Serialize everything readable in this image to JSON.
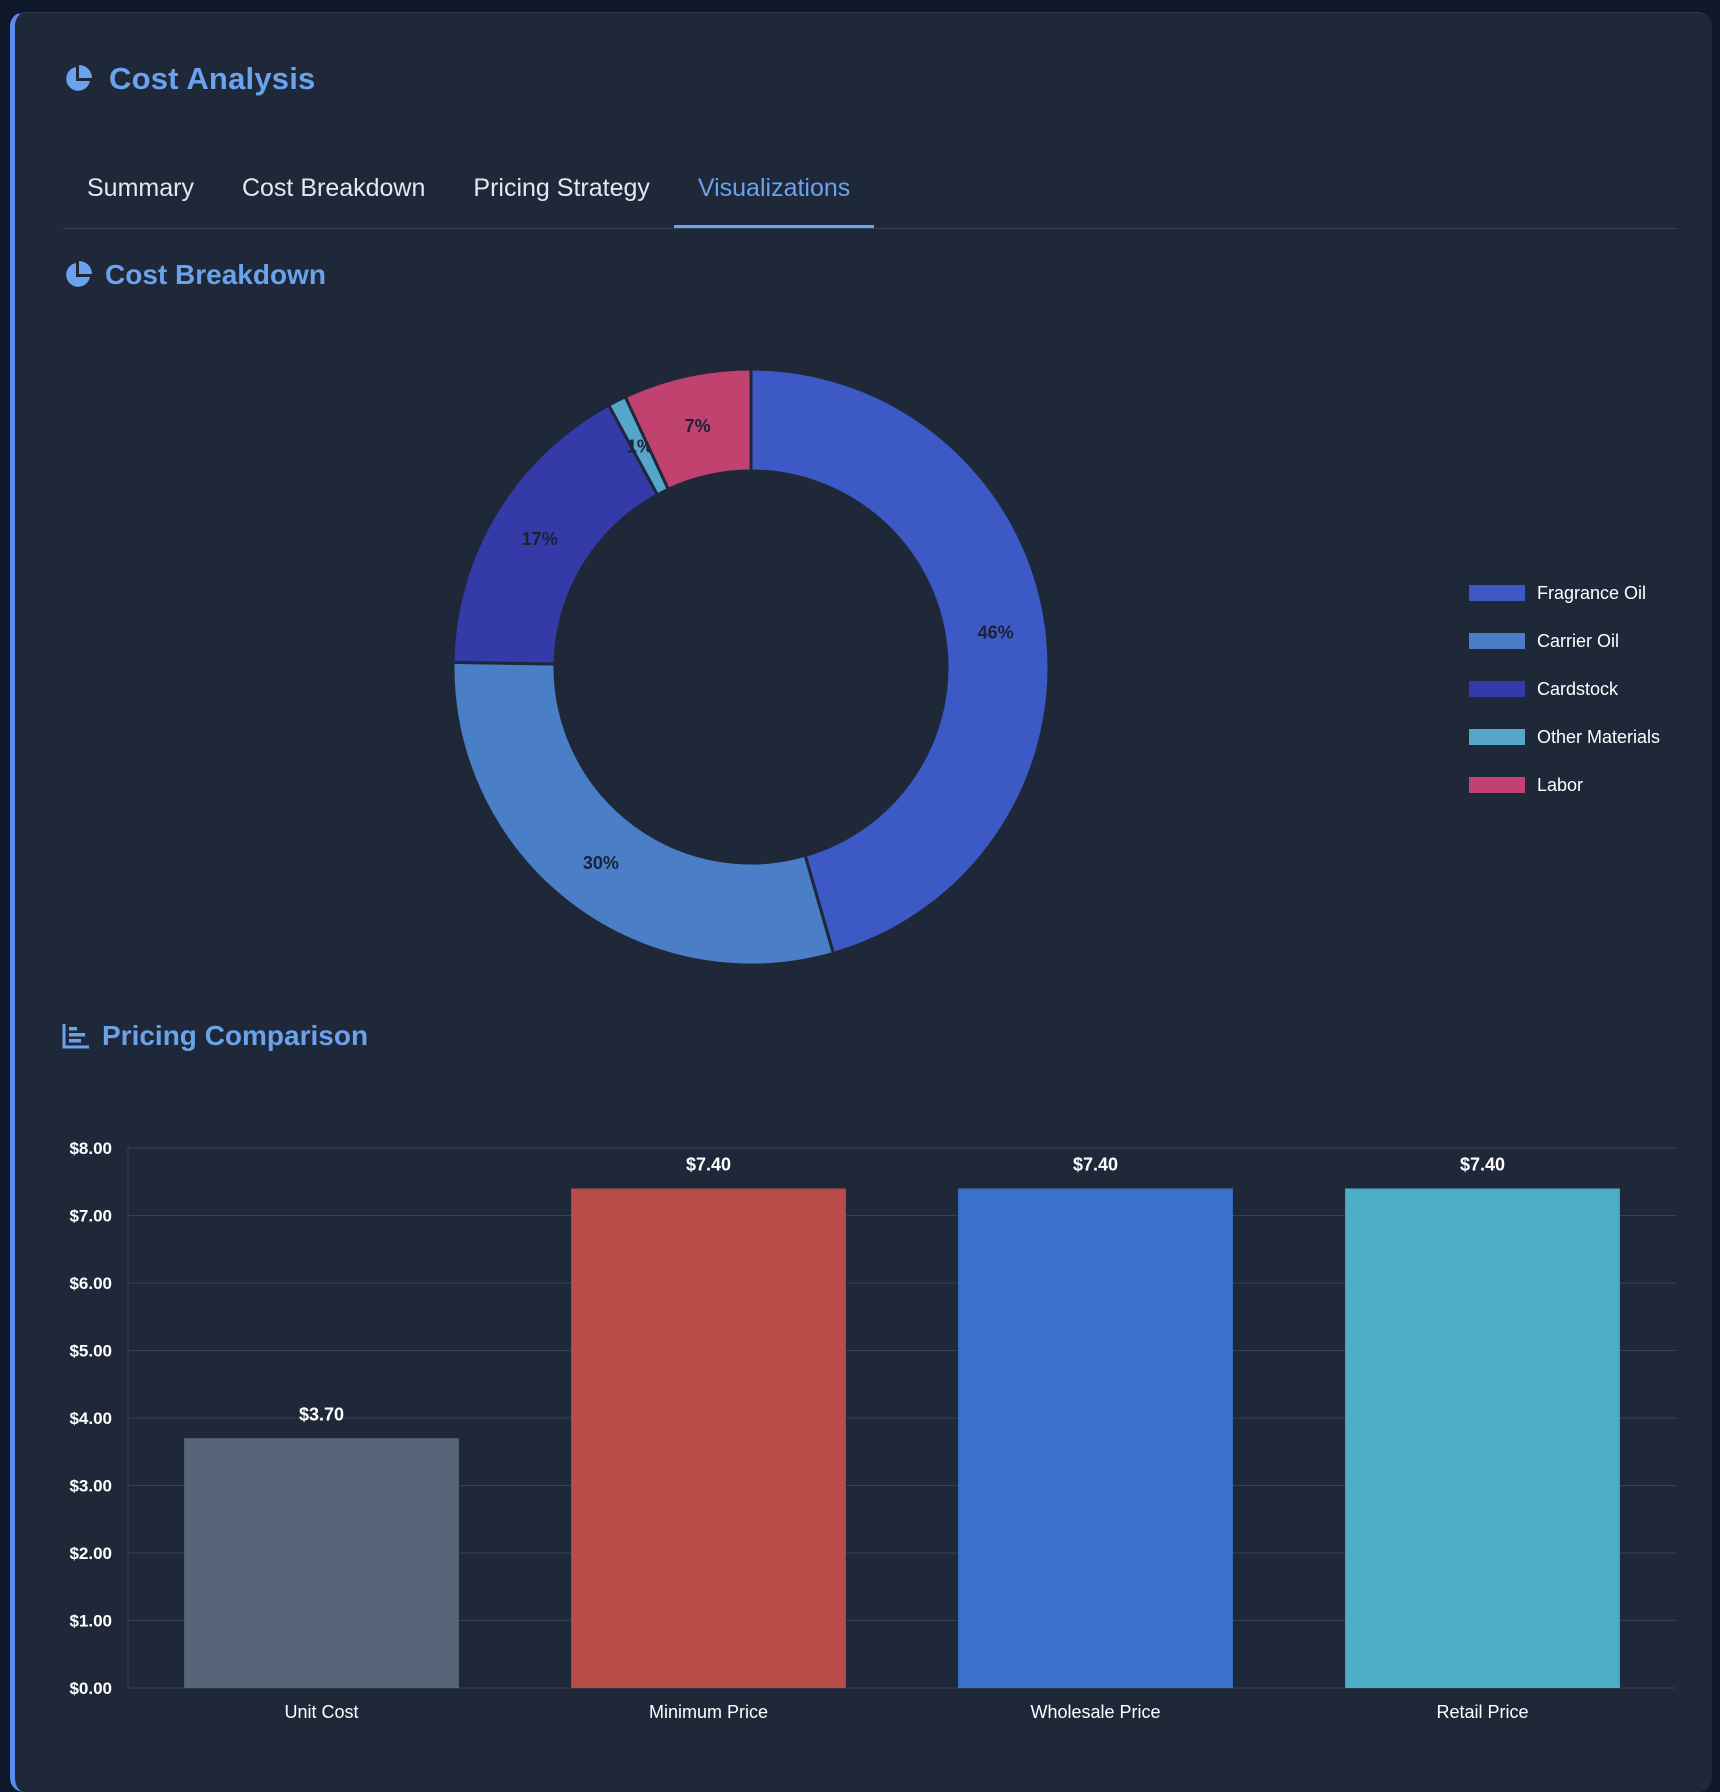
{
  "header": {
    "title": "Cost Analysis",
    "icon": "pie-chart-icon"
  },
  "tabs": [
    {
      "label": "Summary",
      "active": false
    },
    {
      "label": "Cost Breakdown",
      "active": false
    },
    {
      "label": "Pricing Strategy",
      "active": false
    },
    {
      "label": "Visualizations",
      "active": true
    }
  ],
  "sections": {
    "cost_breakdown": {
      "title": "Cost Breakdown",
      "icon": "pie-chart-icon"
    },
    "pricing_comparison": {
      "title": "Pricing Comparison",
      "icon": "bar-chart-icon"
    }
  },
  "colors": {
    "accent": "#6aa2ec",
    "background": "#1f2839"
  },
  "chart_data": [
    {
      "type": "pie",
      "donut": true,
      "categories": [
        "Fragrance Oil",
        "Carrier Oil",
        "Cardstock",
        "Other Materials",
        "Labor"
      ],
      "values": [
        46,
        30,
        17,
        1,
        7
      ],
      "data_labels": [
        "46%",
        "30%",
        "17%",
        "1%",
        "7%"
      ],
      "colors": [
        "#3c59c6",
        "#4a7fc8",
        "#343ba8",
        "#56a6cc",
        "#c2426f"
      ],
      "legend": "right"
    },
    {
      "type": "bar",
      "categories": [
        "Unit Cost",
        "Minimum Price",
        "Wholesale Price",
        "Retail Price"
      ],
      "values": [
        3.7,
        7.4,
        7.4,
        7.4
      ],
      "data_labels": [
        "$3.70",
        "$7.40",
        "$7.40",
        "$7.40"
      ],
      "colors": [
        "#586478",
        "#b84c48",
        "#3c72cc",
        "#4badc6"
      ],
      "ylim": [
        0,
        8
      ],
      "yticks": [
        "$0.00",
        "$1.00",
        "$2.00",
        "$3.00",
        "$4.00",
        "$5.00",
        "$6.00",
        "$7.00",
        "$8.00"
      ],
      "grid": true
    }
  ]
}
